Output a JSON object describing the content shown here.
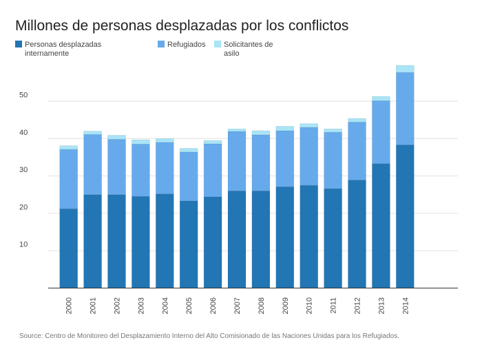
{
  "chart_data": {
    "type": "bar",
    "stacked": true,
    "title": "Millones de personas desplazadas por los conflictos",
    "categories": [
      "2000",
      "2001",
      "2002",
      "2003",
      "2004",
      "2005",
      "2006",
      "2007",
      "2008",
      "2009",
      "2010",
      "2011",
      "2012",
      "2013",
      "2014"
    ],
    "series": [
      {
        "name": "Personas desplazadas internamente",
        "legend_lines": [
          "Personas desplazadas",
          "internamente"
        ],
        "color": "#2276b4",
        "values": [
          21.1,
          24.9,
          24.9,
          24.4,
          25.1,
          23.2,
          24.3,
          25.9,
          25.9,
          27.0,
          27.4,
          26.5,
          28.8,
          33.2,
          38.2
        ]
      },
      {
        "name": "Refugiados",
        "legend_lines": [
          "Refugiados"
        ],
        "color": "#66aaec",
        "values": [
          15.9,
          16.1,
          14.8,
          14.0,
          13.8,
          13.1,
          14.2,
          15.9,
          15.0,
          15.0,
          15.5,
          15.1,
          15.5,
          16.8,
          19.4
        ]
      },
      {
        "name": "Solicitantes de asilo",
        "legend_lines": [
          "Solicitantes de",
          "asilo"
        ],
        "color": "#a9e4f7",
        "values": [
          1.0,
          0.9,
          1.1,
          1.2,
          1.0,
          1.0,
          0.9,
          0.7,
          1.1,
          1.2,
          1.0,
          0.9,
          1.0,
          1.2,
          1.9
        ]
      }
    ],
    "yticks": [
      "10",
      "20",
      "30",
      "40",
      "50"
    ],
    "ylim": [
      0,
      65
    ],
    "grid": true,
    "legend_position": "top-left",
    "source": "Source: Centro de Monitoreo del Desplazamiento Interno del Alto Comisionado de las Naciones Unidas para los Refugiados."
  }
}
